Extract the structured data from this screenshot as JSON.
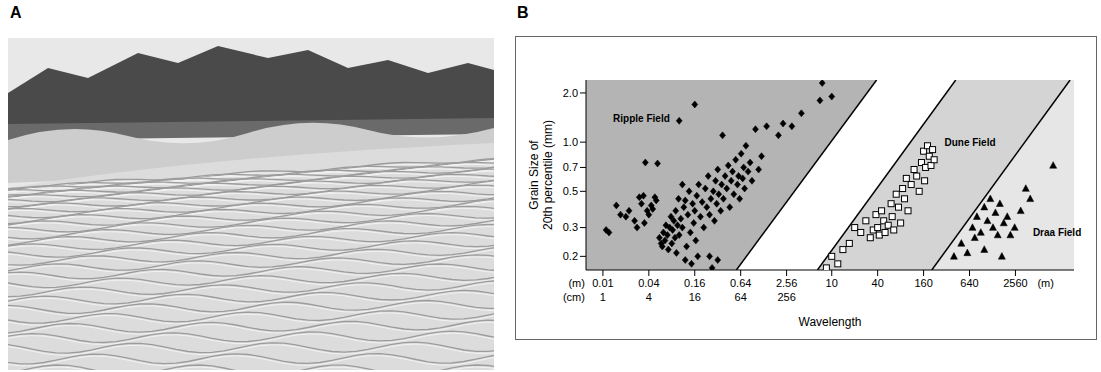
{
  "panels": [
    "A",
    "B"
  ],
  "chart_data": {
    "type": "scatter",
    "log": true,
    "x_label": "Wavelength",
    "y_label": "Grain Size of 20th percentile (mm)",
    "x_unit": "(m)",
    "x_unit_cm": "(cm)",
    "xlim": [
      0.006,
      15000
    ],
    "xticks": [
      0.01,
      0.04,
      0.16,
      0.64,
      2.56,
      10,
      40,
      160,
      640,
      2560
    ],
    "xticks_cm": [
      {
        "value": 0.01,
        "label": "1"
      },
      {
        "value": 0.04,
        "label": "4"
      },
      {
        "value": 0.16,
        "label": "16"
      },
      {
        "value": 0.64,
        "label": "64"
      },
      {
        "value": 2.56,
        "label": "256"
      }
    ],
    "ylim": [
      0.165,
      2.4
    ],
    "yticks": [
      0.2,
      0.3,
      0.5,
      0.7,
      {
        "value": 1,
        "label": "1.0"
      },
      {
        "value": 2,
        "label": "2.0"
      }
    ],
    "series": [
      {
        "name": "Ripple Field",
        "color": "#000000",
        "marker": "diamond",
        "region_color": "#b4b4b4",
        "boundary": {
          "x": [
            0.562,
            38.7
          ],
          "y": [
            0.165,
            2.4
          ]
        },
        "label_x": 0.032,
        "label_y": 1.4,
        "x": [
          0.011,
          0.012,
          0.015,
          0.017,
          0.02,
          0.022,
          0.026,
          0.028,
          0.03,
          0.032,
          0.034,
          0.035,
          0.036,
          0.038,
          0.04,
          0.043,
          0.045,
          0.048,
          0.05,
          0.052,
          0.055,
          0.058,
          0.06,
          0.062,
          0.065,
          0.067,
          0.07,
          0.072,
          0.075,
          0.078,
          0.08,
          0.082,
          0.085,
          0.088,
          0.09,
          0.092,
          0.095,
          0.098,
          0.1,
          0.1,
          0.105,
          0.11,
          0.115,
          0.12,
          0.12,
          0.125,
          0.13,
          0.135,
          0.14,
          0.145,
          0.15,
          0.155,
          0.16,
          0.16,
          0.165,
          0.17,
          0.175,
          0.18,
          0.19,
          0.2,
          0.21,
          0.22,
          0.23,
          0.24,
          0.25,
          0.26,
          0.27,
          0.28,
          0.29,
          0.3,
          0.31,
          0.32,
          0.33,
          0.35,
          0.36,
          0.37,
          0.38,
          0.4,
          0.42,
          0.44,
          0.46,
          0.48,
          0.5,
          0.52,
          0.55,
          0.58,
          0.6,
          0.62,
          0.65,
          0.68,
          0.7,
          0.72,
          0.75,
          0.8,
          0.85,
          0.9,
          1.0,
          1.1,
          1.2,
          1.4,
          2.0,
          2.3,
          3.0,
          4.0,
          7.5,
          7.0,
          10,
          0.25,
          0.32,
          0.11
        ],
        "values": [
          0.29,
          0.28,
          0.41,
          0.36,
          0.35,
          0.38,
          0.33,
          0.3,
          0.46,
          0.42,
          0.47,
          0.32,
          0.75,
          0.38,
          0.36,
          0.41,
          0.39,
          0.46,
          0.44,
          0.74,
          0.26,
          0.24,
          0.23,
          0.28,
          0.25,
          0.31,
          0.27,
          0.22,
          0.3,
          0.35,
          0.24,
          0.29,
          0.33,
          0.26,
          0.38,
          0.21,
          0.31,
          0.45,
          1.35,
          0.27,
          0.34,
          0.3,
          0.4,
          0.19,
          0.44,
          0.23,
          0.36,
          0.5,
          0.28,
          0.18,
          0.42,
          0.32,
          1.7,
          0.38,
          0.25,
          0.47,
          0.2,
          0.55,
          0.35,
          0.43,
          0.3,
          0.52,
          0.4,
          0.62,
          0.36,
          0.45,
          0.17,
          0.5,
          0.33,
          0.58,
          0.42,
          0.68,
          0.48,
          0.38,
          0.55,
          1.1,
          0.45,
          0.62,
          0.52,
          0.72,
          0.4,
          0.58,
          0.66,
          0.48,
          0.78,
          0.55,
          0.62,
          0.45,
          0.85,
          0.6,
          0.7,
          0.52,
          0.95,
          0.66,
          0.75,
          0.58,
          1.2,
          0.68,
          0.82,
          1.25,
          1.1,
          1.3,
          1.25,
          1.5,
          2.3,
          1.8,
          1.9,
          0.2,
          0.19,
          0.55
        ]
      },
      {
        "name": "Dune Field",
        "color": "#000000",
        "marker": "square-open",
        "region_color": "#d4d4d4",
        "boundary": {
          "x": [
            6.49,
            422
          ],
          "y": [
            0.165,
            2.4
          ]
        },
        "label_x": 650,
        "label_y": 1.0,
        "x": [
          8.5,
          10,
          12,
          14,
          17,
          20,
          24,
          28,
          32,
          35,
          38,
          40,
          42,
          45,
          48,
          50,
          55,
          60,
          62,
          65,
          70,
          75,
          80,
          85,
          90,
          95,
          100,
          110,
          120,
          130,
          140,
          150,
          160,
          165,
          170,
          180,
          190,
          200,
          210,
          220
        ],
        "values": [
          0.17,
          0.2,
          0.18,
          0.22,
          0.24,
          0.3,
          0.28,
          0.33,
          0.26,
          0.29,
          0.36,
          0.3,
          0.27,
          0.38,
          0.33,
          0.28,
          0.31,
          0.42,
          0.35,
          0.29,
          0.48,
          0.4,
          0.32,
          0.52,
          0.45,
          0.6,
          0.38,
          0.55,
          0.68,
          0.62,
          0.5,
          0.75,
          0.88,
          0.58,
          0.7,
          0.95,
          0.82,
          0.72,
          0.9,
          0.78
        ]
      },
      {
        "name": "Draa Field",
        "color": "#000000",
        "marker": "triangle",
        "region_color": "#e6e6e6",
        "boundary": {
          "x": [
            205,
            13335
          ],
          "y": [
            0.165,
            2.4
          ]
        },
        "label_x": 9000,
        "label_y": 0.28,
        "x": [
          400,
          500,
          600,
          700,
          750,
          800,
          900,
          1000,
          1000,
          1100,
          1200,
          1300,
          1400,
          1500,
          1600,
          1700,
          1800,
          2000,
          2200,
          2500,
          3000,
          3500,
          4000,
          8000
        ],
        "values": [
          0.2,
          0.24,
          0.21,
          0.3,
          0.26,
          0.35,
          0.28,
          0.4,
          0.22,
          0.33,
          0.45,
          0.3,
          0.37,
          0.27,
          0.42,
          0.2,
          0.32,
          0.35,
          0.27,
          0.3,
          0.38,
          0.52,
          0.45,
          0.72
        ]
      }
    ]
  }
}
